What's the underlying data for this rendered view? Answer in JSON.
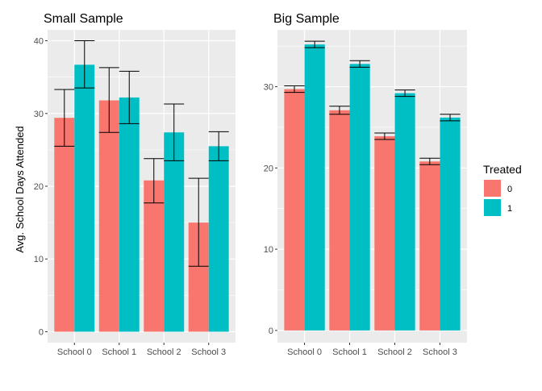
{
  "chart_data": {
    "type": "bar",
    "ylabel": "Avg. School Days Attended",
    "legend": {
      "title": "Treated",
      "placement": "right",
      "entries": [
        {
          "label": "0",
          "color": "#F8766D"
        },
        {
          "label": "1",
          "color": "#00BFC4"
        }
      ]
    },
    "grid": true,
    "panels": [
      {
        "title": "Small Sample",
        "categories": [
          "School 0",
          "School 1",
          "School 2",
          "School 3"
        ],
        "ylim": [
          -1.5,
          41.5
        ],
        "yticks": [
          0,
          10,
          20,
          30,
          40
        ],
        "series": [
          {
            "name": "0",
            "color": "#F8766D",
            "values": [
              29.4,
              31.8,
              20.8,
              15.0
            ],
            "error_low": [
              25.5,
              27.4,
              17.7,
              9.0
            ],
            "error_high": [
              33.3,
              36.3,
              23.8,
              21.1
            ]
          },
          {
            "name": "1",
            "color": "#00BFC4",
            "values": [
              36.7,
              32.2,
              27.4,
              25.5
            ],
            "error_low": [
              33.5,
              28.6,
              23.5,
              23.5
            ],
            "error_high": [
              40.0,
              35.8,
              31.3,
              27.5
            ]
          }
        ]
      },
      {
        "title": "Big Sample",
        "categories": [
          "School 0",
          "School 1",
          "School 2",
          "School 3"
        ],
        "ylim": [
          -1.5,
          37.0
        ],
        "yticks": [
          0,
          10,
          20,
          30
        ],
        "series": [
          {
            "name": "0",
            "color": "#F8766D",
            "values": [
              29.7,
              27.1,
              23.9,
              20.8
            ],
            "error_low": [
              29.3,
              26.6,
              23.5,
              20.4
            ],
            "error_high": [
              30.1,
              27.6,
              24.3,
              21.2
            ]
          },
          {
            "name": "1",
            "color": "#00BFC4",
            "values": [
              35.2,
              32.8,
              29.2,
              26.2
            ],
            "error_low": [
              34.8,
              32.4,
              28.8,
              25.8
            ],
            "error_high": [
              35.6,
              33.2,
              29.6,
              26.6
            ]
          }
        ]
      }
    ]
  }
}
